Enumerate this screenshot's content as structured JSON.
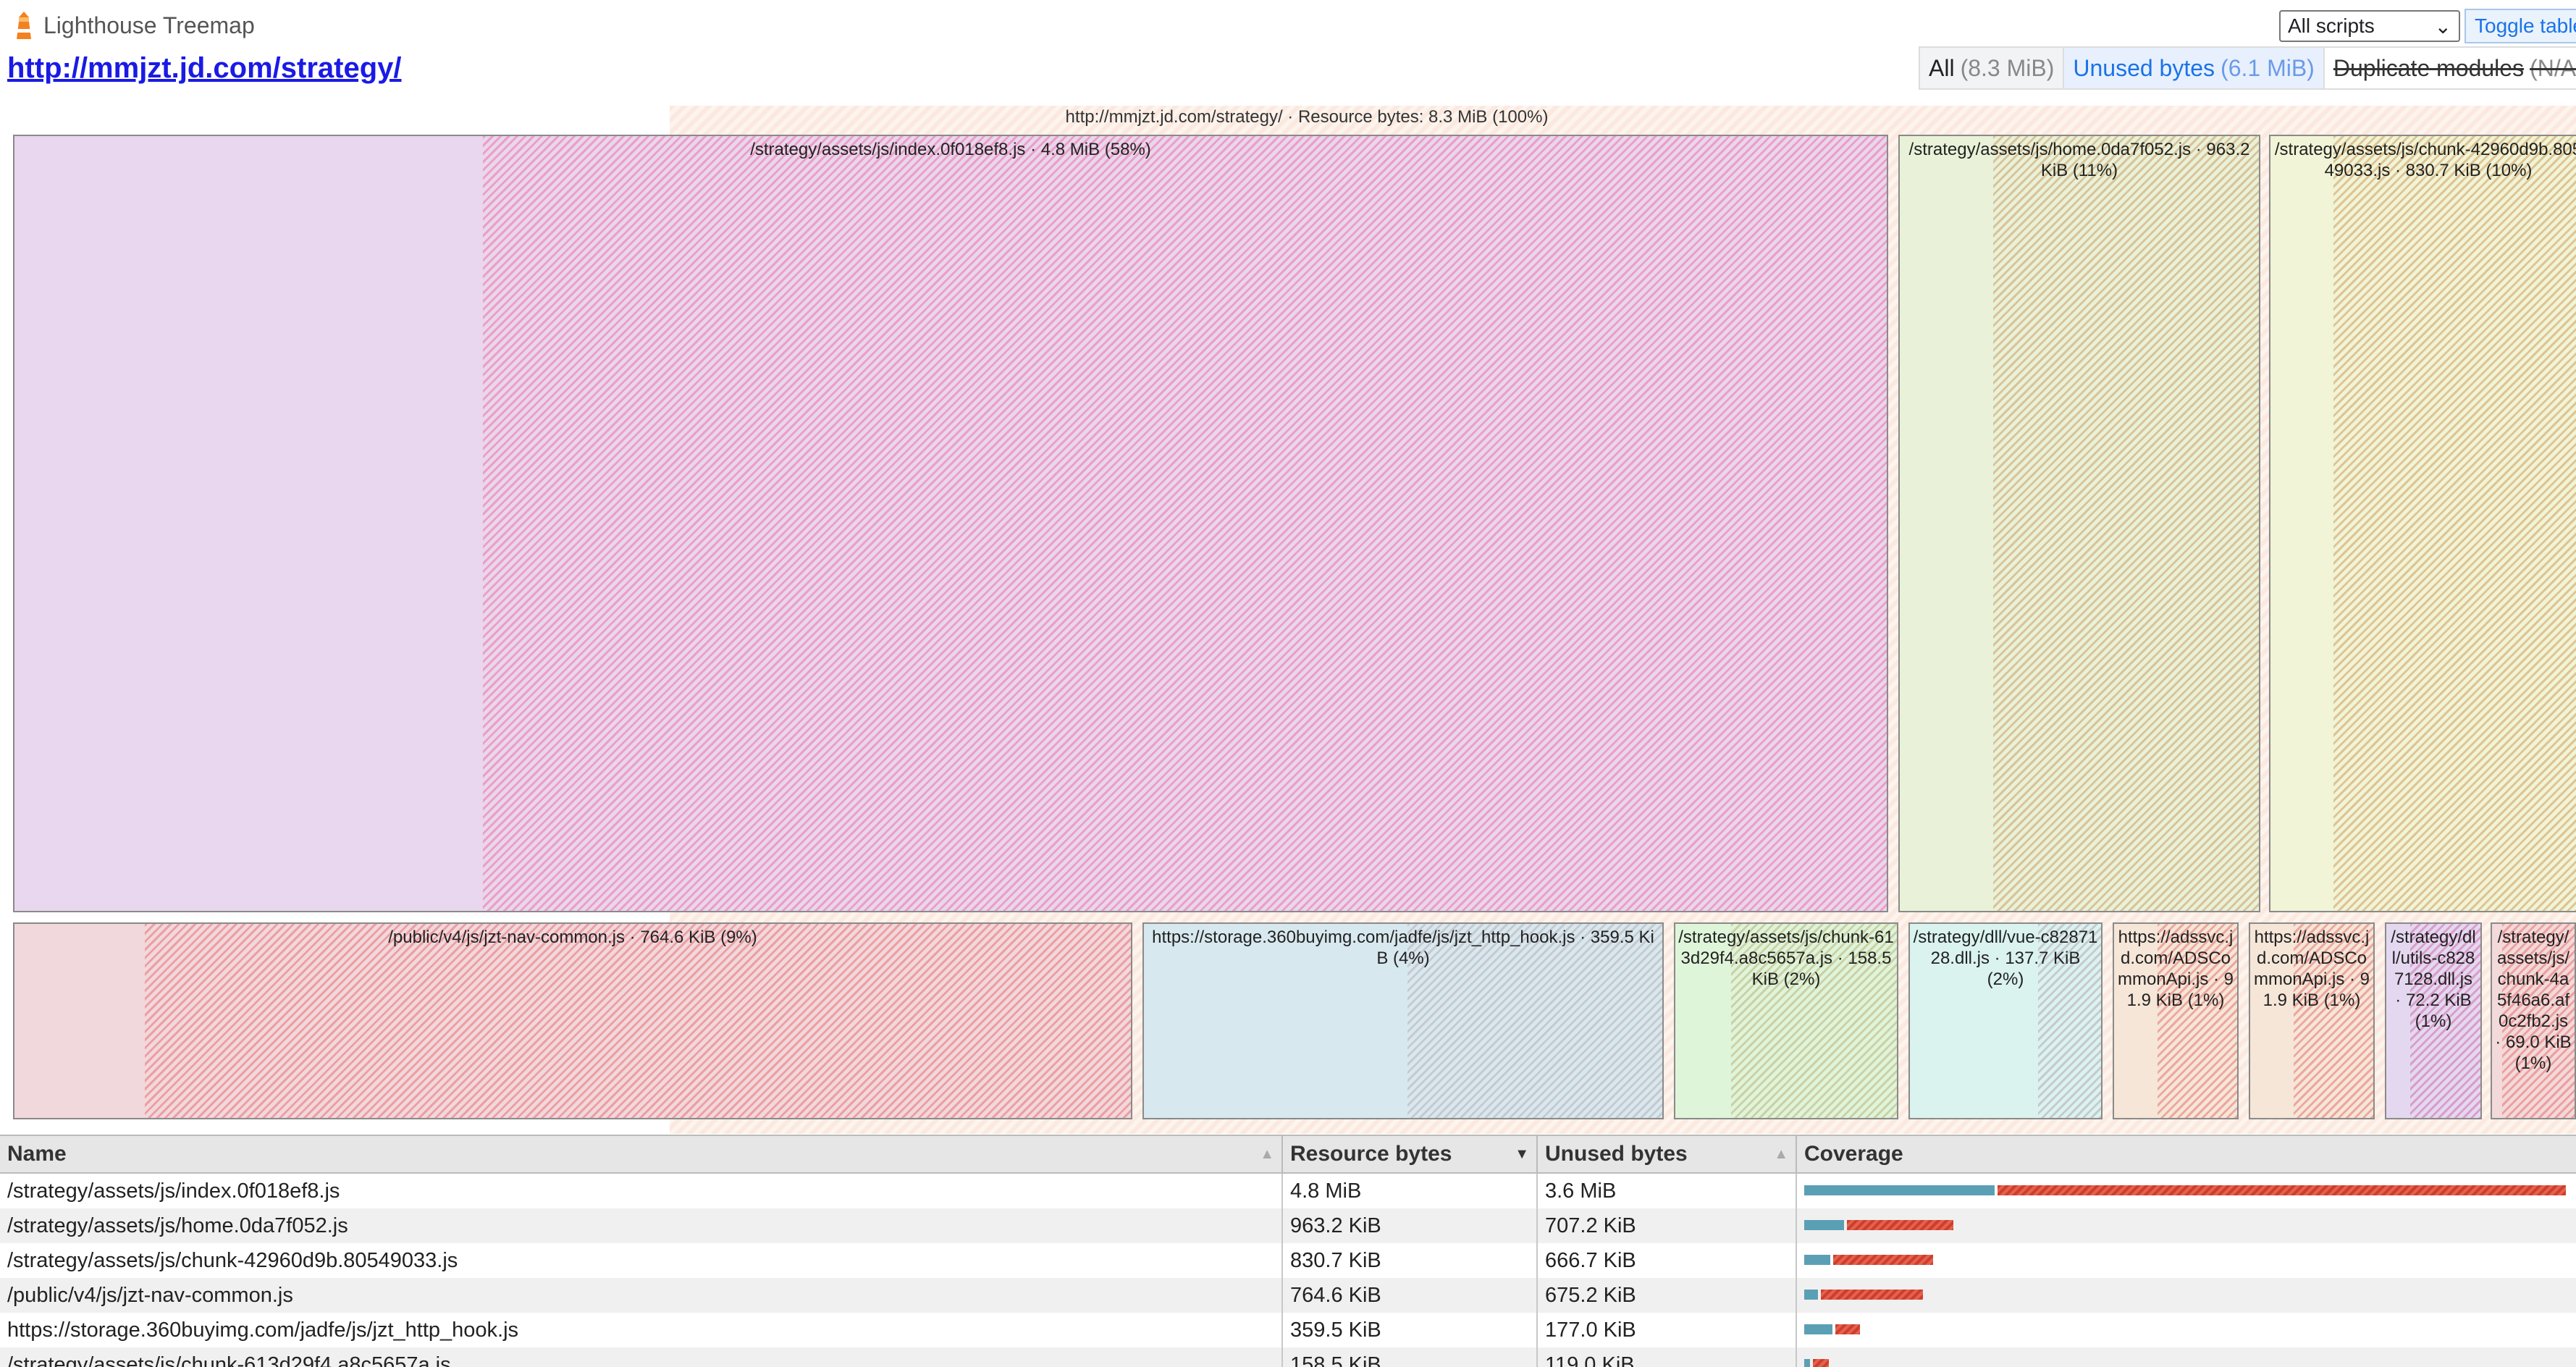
{
  "header": {
    "app_title": "Lighthouse Treemap",
    "page_url": "http://mmjzt.jd.com/strategy/",
    "script_filter": "All scripts",
    "toggle_table": "Toggle table"
  },
  "modes": [
    {
      "label": "All",
      "detail": "(8.3 MiB)"
    },
    {
      "label": "Unused bytes",
      "detail": "(6.1 MiB)"
    },
    {
      "label": "Duplicate modules",
      "detail": "(N/A)"
    }
  ],
  "treemap": {
    "root_label": "http://mmjzt.jd.com/strategy/ · Resource bytes: 8.3 MiB (100%)",
    "nodes": [
      {
        "label": "/strategy/assets/js/index.0f018ef8.js · 4.8 MiB (58%)",
        "used_fraction": 0.25,
        "base": "#e9d6ef",
        "hatch": "#ec9fc2"
      },
      {
        "label": "/strategy/assets/js/home.0da7f052.js · 963.2 KiB (11%)",
        "used_fraction": 0.26,
        "base": "#e9f2d8",
        "hatch": "#d9c39a"
      },
      {
        "label": "/strategy/assets/js/chunk-42960d9b.80549033.js · 830.7 KiB (10%)",
        "used_fraction": 0.2,
        "base": "#f1f4d6",
        "hatch": "#dec494"
      },
      {
        "label": "/public/v4/js/jzt-nav-common.js · 764.6 KiB (9%)",
        "used_fraction": 0.117,
        "base": "#f1d8dc",
        "hatch": "#ec9fa3"
      },
      {
        "label": "https://storage.360buyimg.com/jadfe/js/jzt_http_hook.js · 359.5 KiB (4%)",
        "used_fraction": 0.508,
        "base": "#d8e8ef",
        "hatch": "#c7c9cf"
      },
      {
        "label": "/strategy/assets/js/chunk-613d29f4.a8c5657a.js · 158.5 KiB (2%)",
        "used_fraction": 0.25,
        "base": "#dff5da",
        "hatch": "#ccd0a6"
      },
      {
        "label": "/strategy/dll/vue-c8287128.dll.js · 137.7 KiB (2%)",
        "used_fraction": 0.67,
        "base": "#daf3ef",
        "hatch": "#c7c9cf"
      },
      {
        "label": "https://adssvc.jd.com/ADSCommonApi.js · 91.9 KiB (1%)",
        "used_fraction": 0.35,
        "base": "#f5e6d8",
        "hatch": "#eda79d"
      },
      {
        "label": "https://adssvc.jd.com/ADSCommonApi.js · 91.9 KiB (1%)",
        "used_fraction": 0.35,
        "base": "#f5e6d8",
        "hatch": "#eda79d"
      },
      {
        "label": "/strategy/dll/utils-c8287128.dll.js · 72.2 KiB (1%)",
        "used_fraction": 0.25,
        "base": "#e4d8f1",
        "hatch": "#d99ec8"
      },
      {
        "label": "/strategy/assets/js/chunk-4a5f46a6.af0c2fb2.js · 69.0 KiB (1%)",
        "used_fraction": 0.12,
        "base": "#f3d9d9",
        "hatch": "#ec9f9f"
      }
    ]
  },
  "table": {
    "columns": [
      "Name",
      "Resource bytes",
      "Unused bytes",
      "Coverage"
    ],
    "rows": [
      {
        "name": "/strategy/assets/js/index.0f018ef8.js",
        "resource": "4.8 MiB",
        "unused": "3.6 MiB",
        "used_share": 0.25,
        "total_share": 1.0
      },
      {
        "name": "/strategy/assets/js/home.0da7f052.js",
        "resource": "963.2 KiB",
        "unused": "707.2 KiB",
        "used_share": 0.266,
        "total_share": 0.196
      },
      {
        "name": "/strategy/assets/js/chunk-42960d9b.80549033.js",
        "resource": "830.7 KiB",
        "unused": "666.7 KiB",
        "used_share": 0.2,
        "total_share": 0.169
      },
      {
        "name": "/public/v4/js/jzt-nav-common.js",
        "resource": "764.6 KiB",
        "unused": "675.2 KiB",
        "used_share": 0.117,
        "total_share": 0.156
      },
      {
        "name": "https://storage.360buyimg.com/jadfe/js/jzt_http_hook.js",
        "resource": "359.5 KiB",
        "unused": "177.0 KiB",
        "used_share": 0.508,
        "total_share": 0.073
      },
      {
        "name": "/strategy/assets/js/chunk-613d29f4.a8c5657a.js",
        "resource": "158.5 KiB",
        "unused": "119.0 KiB",
        "used_share": 0.25,
        "total_share": 0.032
      }
    ]
  }
}
